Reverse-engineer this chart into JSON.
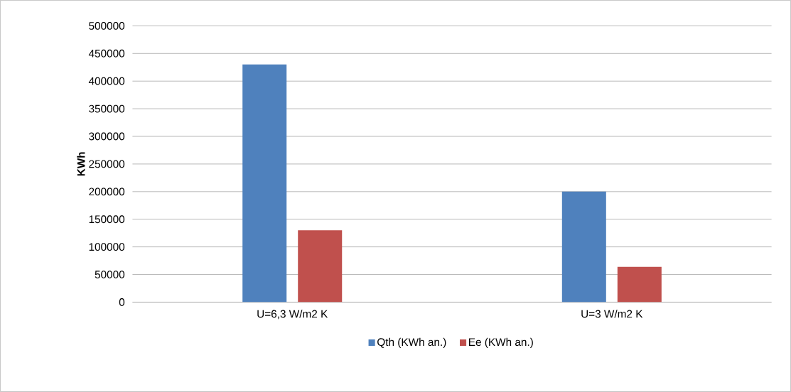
{
  "chart_data": {
    "type": "bar",
    "ylabel": "KWh",
    "categories": [
      "U=6,3 W/m2 K",
      "U=3 W/m2 K"
    ],
    "series": [
      {
        "name": "Qth (KWh an.)",
        "color": "#4f81bd",
        "values": [
          430000,
          200000
        ]
      },
      {
        "name": "Ee (KWh an.)",
        "color": "#c0504d",
        "values": [
          130000,
          64000
        ]
      }
    ],
    "ylim": [
      0,
      500000
    ],
    "yticks": [
      0,
      50000,
      100000,
      150000,
      200000,
      250000,
      300000,
      350000,
      400000,
      450000,
      500000
    ],
    "grid": "y",
    "legend": "bottom"
  }
}
